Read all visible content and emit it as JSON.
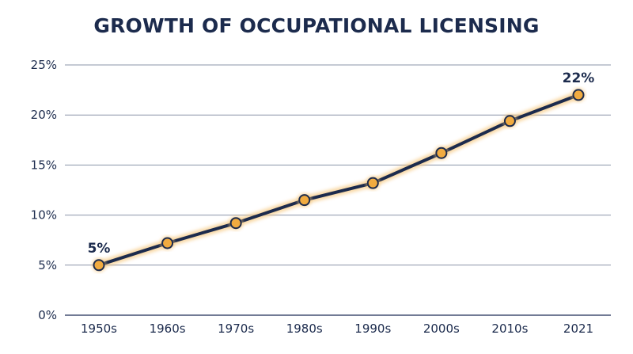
{
  "chart_data": {
    "type": "line",
    "title": "GROWTH OF OCCUPATIONAL LICENSING",
    "xlabel": "",
    "ylabel": "",
    "categories": [
      "1950s",
      "1960s",
      "1970s",
      "1980s",
      "1990s",
      "2000s",
      "2010s",
      "2021"
    ],
    "series": [
      {
        "values": [
          5,
          7.2,
          9.2,
          11.5,
          13.2,
          16.2,
          19.4,
          22
        ]
      }
    ],
    "y_ticks": [
      "0%",
      "5%",
      "10%",
      "15%",
      "20%",
      "25%"
    ],
    "ylim": [
      0,
      25
    ],
    "grid": true,
    "annotations": [
      {
        "category": "1950s",
        "text": "5%"
      },
      {
        "category": "2021",
        "text": "22%"
      }
    ],
    "colors": {
      "line": "#1c2b4d",
      "marker_fill": "#f1ab40",
      "marker_stroke": "#1c2b4d",
      "glow": "#f6c77d",
      "grid": "#2e3d63",
      "text": "#1c2b4d"
    }
  }
}
